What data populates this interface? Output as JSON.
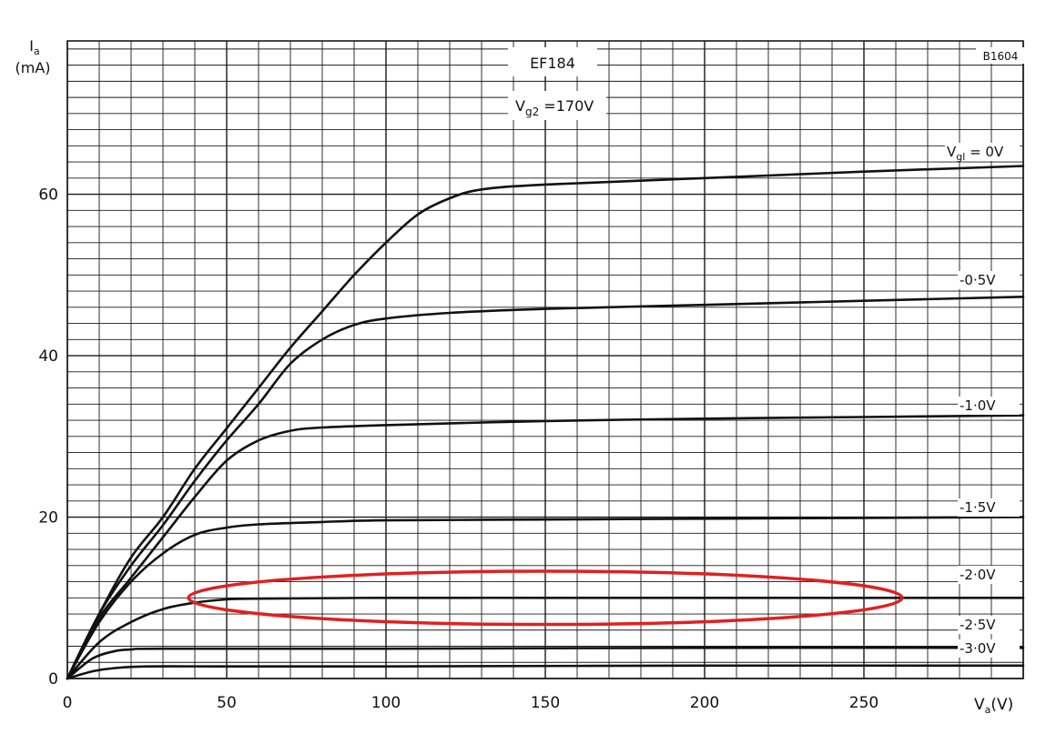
{
  "chart_data": {
    "type": "line",
    "title": "EF184",
    "condition": {
      "main": "V",
      "sub": "g2",
      "rest": " =170V"
    },
    "figure_code": "B1604",
    "ylabel": {
      "main": "I",
      "sub": "a",
      "unit": "(mA)"
    },
    "xlabel": {
      "main": "V",
      "sub": "a",
      "unit": "(V)"
    },
    "xlim": [
      0,
      300
    ],
    "ylim": [
      0,
      79
    ],
    "x_ticks": [
      0,
      50,
      100,
      150,
      200,
      250
    ],
    "y_ticks": [
      0,
      20,
      40,
      60
    ],
    "grid": true,
    "series": [
      {
        "name": "Vg1 = 0V",
        "label": {
          "main": "V",
          "sub": "gl",
          "rest": " = 0V"
        },
        "points": [
          [
            0,
            0
          ],
          [
            10,
            8
          ],
          [
            20,
            15
          ],
          [
            30,
            20
          ],
          [
            40,
            26
          ],
          [
            50,
            31
          ],
          [
            60,
            36
          ],
          [
            70,
            41
          ],
          [
            80,
            45.5
          ],
          [
            90,
            50
          ],
          [
            100,
            54
          ],
          [
            110,
            57.5
          ],
          [
            120,
            59.5
          ],
          [
            130,
            60.6
          ],
          [
            150,
            61.2
          ],
          [
            200,
            62
          ],
          [
            250,
            62.8
          ],
          [
            300,
            63.5
          ]
        ]
      },
      {
        "name": "-0.5V",
        "label": {
          "main": "-0·5V"
        },
        "points": [
          [
            0,
            0
          ],
          [
            10,
            8
          ],
          [
            20,
            14
          ],
          [
            30,
            19
          ],
          [
            40,
            24.5
          ],
          [
            50,
            29.5
          ],
          [
            60,
            34
          ],
          [
            70,
            39
          ],
          [
            80,
            42
          ],
          [
            90,
            43.8
          ],
          [
            100,
            44.6
          ],
          [
            120,
            45.3
          ],
          [
            150,
            45.8
          ],
          [
            200,
            46.3
          ],
          [
            250,
            46.8
          ],
          [
            300,
            47.3
          ]
        ]
      },
      {
        "name": "-1.0V",
        "label": {
          "main": "-1·0V"
        },
        "points": [
          [
            0,
            0
          ],
          [
            10,
            7.5
          ],
          [
            20,
            12.5
          ],
          [
            30,
            17.5
          ],
          [
            40,
            22.5
          ],
          [
            50,
            27
          ],
          [
            60,
            29.5
          ],
          [
            70,
            30.7
          ],
          [
            80,
            31.1
          ],
          [
            100,
            31.4
          ],
          [
            150,
            31.9
          ],
          [
            200,
            32.2
          ],
          [
            250,
            32.4
          ],
          [
            300,
            32.6
          ]
        ]
      },
      {
        "name": "-1.5V",
        "label": {
          "main": "-1·5V"
        },
        "points": [
          [
            0,
            0
          ],
          [
            10,
            7
          ],
          [
            20,
            12
          ],
          [
            30,
            15.5
          ],
          [
            40,
            17.8
          ],
          [
            50,
            18.7
          ],
          [
            60,
            19.1
          ],
          [
            80,
            19.4
          ],
          [
            100,
            19.6
          ],
          [
            150,
            19.7
          ],
          [
            200,
            19.8
          ],
          [
            250,
            19.9
          ],
          [
            300,
            20
          ]
        ]
      },
      {
        "name": "-2.0V",
        "label": {
          "main": "-2·0V"
        },
        "points": [
          [
            0,
            0
          ],
          [
            10,
            4.5
          ],
          [
            20,
            7
          ],
          [
            30,
            8.6
          ],
          [
            40,
            9.4
          ],
          [
            50,
            9.8
          ],
          [
            60,
            9.9
          ],
          [
            100,
            10
          ],
          [
            150,
            10
          ],
          [
            200,
            10
          ],
          [
            250,
            10
          ],
          [
            300,
            10
          ]
        ]
      },
      {
        "name": "-2.5V",
        "label": {
          "main": "-2·5V"
        },
        "points": [
          [
            0,
            0
          ],
          [
            8,
            2.5
          ],
          [
            15,
            3.4
          ],
          [
            20,
            3.6
          ],
          [
            30,
            3.7
          ],
          [
            100,
            3.7
          ],
          [
            200,
            3.8
          ],
          [
            300,
            3.8
          ]
        ]
      },
      {
        "name": "-3.0V",
        "label": {
          "main": "-3·0V"
        },
        "points": [
          [
            0,
            0
          ],
          [
            8,
            0.9
          ],
          [
            15,
            1.3
          ],
          [
            25,
            1.5
          ],
          [
            50,
            1.5
          ],
          [
            100,
            1.5
          ],
          [
            200,
            1.6
          ],
          [
            300,
            1.6
          ]
        ]
      }
    ],
    "annotations": [
      {
        "type": "ellipse",
        "color": "#e02020",
        "center": [
          150,
          10
        ],
        "x_radius": 112,
        "y_radius": 3.3
      }
    ],
    "colors": {
      "curve": "#111111",
      "grid": "#1a1a1a",
      "highlight": "#e02020"
    }
  }
}
